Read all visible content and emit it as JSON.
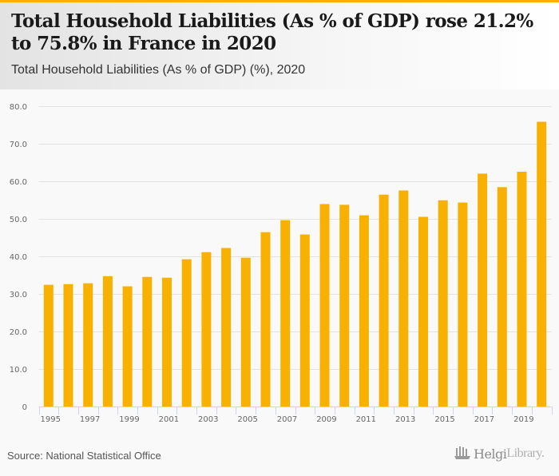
{
  "header": {
    "title": "Total Household Liabilities (As % of GDP) rose 21.2% to 75.8% in France in 2020",
    "subtitle": "Total Household Liabilities (As % of GDP) (%), 2020"
  },
  "footer": {
    "source": "Source: National Statistical Office",
    "logo_icon": "helgi-library-logo-icon",
    "logo_text_bold": "Helgi",
    "logo_text_light": "Library."
  },
  "colors": {
    "accent": "#f8b100",
    "bar": "#f8b100",
    "grid": "#e2e2e2",
    "axis": "#ccd6eb"
  },
  "chart_data": {
    "type": "bar",
    "title": "Total Household Liabilities (As % of GDP) (%), 2020",
    "xlabel": "",
    "ylabel": "",
    "categories": [
      "1995",
      "1996",
      "1997",
      "1998",
      "1999",
      "2000",
      "2001",
      "2002",
      "2003",
      "2004",
      "2005",
      "2006",
      "2007",
      "2008",
      "2009",
      "2010",
      "2011",
      "2012",
      "2013",
      "2014",
      "2015",
      "2016",
      "2017",
      "2018",
      "2019",
      "2020"
    ],
    "values": [
      32.4,
      32.6,
      32.8,
      34.7,
      32.0,
      34.5,
      34.3,
      39.2,
      41.1,
      42.2,
      39.6,
      46.4,
      49.6,
      45.8,
      53.9,
      53.7,
      50.9,
      56.4,
      57.5,
      50.5,
      54.9,
      54.3,
      62.0,
      58.4,
      62.5,
      75.8
    ],
    "ylim": [
      0,
      80
    ],
    "yticks": [
      0,
      10,
      20,
      30,
      40,
      50,
      60,
      70,
      80
    ],
    "ytick_labels": [
      "0",
      "10.0",
      "20.0",
      "30.0",
      "40.0",
      "50.0",
      "60.0",
      "70.0",
      "80.0"
    ],
    "xtick_labels": [
      "1995",
      "1997",
      "1999",
      "2001",
      "2003",
      "2005",
      "2007",
      "2009",
      "2011",
      "2013",
      "2015",
      "2017",
      "2019"
    ],
    "grid": true,
    "legend": "none"
  }
}
